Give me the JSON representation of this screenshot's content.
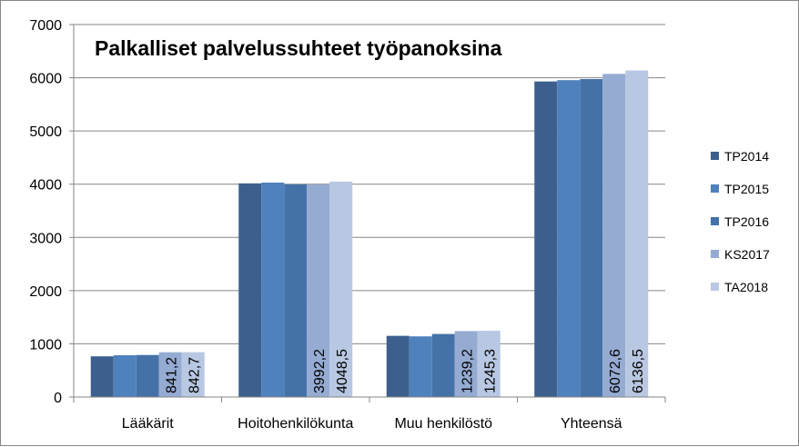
{
  "chart_data": {
    "type": "bar",
    "title": "Palkalliset palvelussuhteet työpanoksina",
    "xlabel": "",
    "ylabel": "",
    "ylim": [
      0,
      7000
    ],
    "yticks": [
      0,
      1000,
      2000,
      3000,
      4000,
      5000,
      6000,
      7000
    ],
    "grid": true,
    "legend_position": "right",
    "categories": [
      "Lääkärit",
      "Hoitohenkilökunta",
      "Muu henkilöstö",
      "Yhteensä"
    ],
    "series": [
      {
        "name": "TP2014",
        "color": "#3c5f8e",
        "values": [
          765,
          4015,
          1150,
          5930
        ]
      },
      {
        "name": "TP2015",
        "color": "#4f81bd",
        "values": [
          785,
          4030,
          1140,
          5955
        ]
      },
      {
        "name": "TP2016",
        "color": "#4472a8",
        "values": [
          790,
          3995,
          1185,
          5975
        ]
      },
      {
        "name": "KS2017",
        "color": "#95abd2",
        "values": [
          841.2,
          3992.2,
          1239.2,
          6072.6
        ],
        "labels": [
          "841,2",
          "3992,2",
          "1239,2",
          "6072,6"
        ]
      },
      {
        "name": "TA2018",
        "color": "#b9c8e2",
        "values": [
          842.7,
          4048.5,
          1245.3,
          6136.5
        ],
        "labels": [
          "842,7",
          "4048,5",
          "1245,3",
          "6136,5"
        ]
      }
    ]
  }
}
